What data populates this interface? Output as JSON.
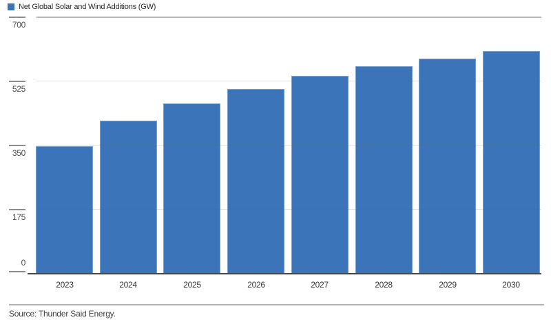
{
  "legend": {
    "label": "Net Global Solar and Wind Additions (GW)",
    "swatch_color": "#3b74b9"
  },
  "source": {
    "text": "Source: Thunder Said Energy."
  },
  "colors": {
    "bar": "#3b74b9",
    "gridline_major_top": "#b4b4b4",
    "gridline_minor": "rgba(100,100,100,0.22)",
    "baseline": "#474747",
    "tick": "#8c8c8c"
  },
  "chart_data": {
    "type": "bar",
    "title": "Net Global Solar and Wind Additions (GW)",
    "categories": [
      "2023",
      "2024",
      "2025",
      "2026",
      "2027",
      "2028",
      "2029",
      "2030"
    ],
    "values": [
      347,
      415,
      462,
      503,
      539,
      564,
      586,
      606
    ],
    "xlabel": "",
    "ylabel": "GW",
    "ylim": [
      0,
      700
    ],
    "yticks": [
      0,
      175,
      350,
      525,
      700
    ],
    "grid": "horizontal",
    "legend_position": "top-left",
    "bar_color": "#3b74b9",
    "source": "Source: Thunder Said Energy."
  }
}
